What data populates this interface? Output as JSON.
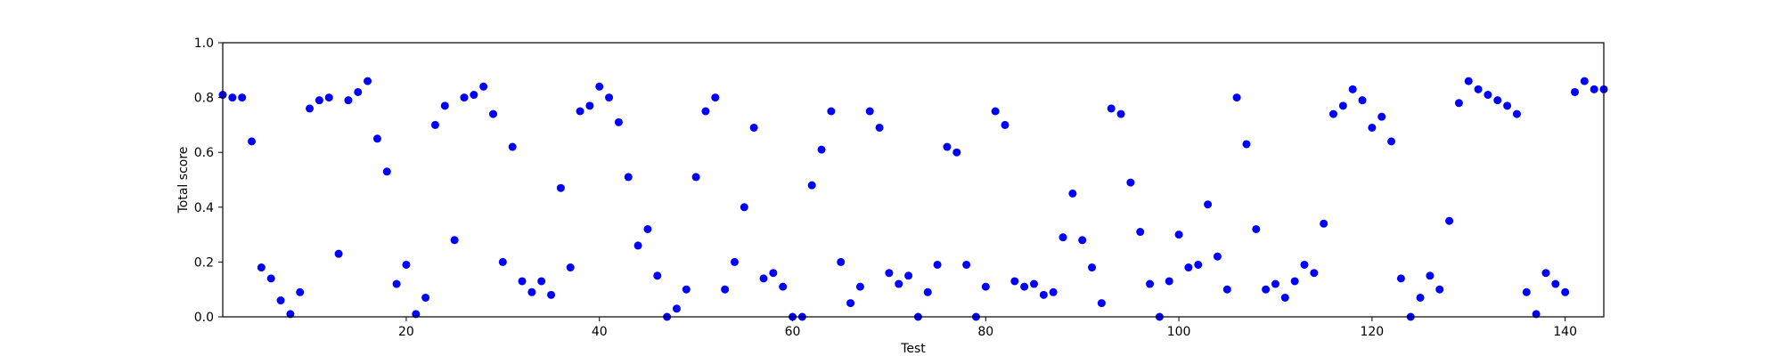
{
  "chart_data": {
    "type": "scatter",
    "title": "",
    "xlabel": "Test",
    "ylabel": "Total score",
    "xlim": [
      1,
      144
    ],
    "ylim": [
      0.0,
      1.0
    ],
    "grid": false,
    "marker_color": "#0000ff",
    "x_ticks": [
      20,
      40,
      60,
      80,
      100,
      120,
      140
    ],
    "x_tick_labels": [
      "20",
      "40",
      "60",
      "80",
      "100",
      "120",
      "140"
    ],
    "y_ticks": [
      0.0,
      0.2,
      0.4,
      0.6,
      0.8,
      1.0
    ],
    "y_tick_labels": [
      "0.0",
      "0.2",
      "0.4",
      "0.6",
      "0.8",
      "1.0"
    ],
    "series": [
      {
        "x": [
          1,
          2,
          3,
          4,
          5,
          6,
          7,
          8,
          9,
          10,
          11,
          12,
          13,
          14,
          15,
          16,
          17,
          18,
          19,
          20,
          21,
          22,
          23,
          24,
          25,
          26,
          27,
          28,
          29,
          30,
          31,
          32,
          33,
          34,
          35,
          36,
          37,
          38,
          39,
          40,
          41,
          42,
          43,
          44,
          45,
          46,
          47,
          48,
          49,
          50,
          51,
          52,
          53,
          54,
          55,
          56,
          57,
          58,
          59,
          60,
          61,
          62,
          63,
          64,
          65,
          66,
          67,
          68,
          69,
          70,
          71,
          72,
          73,
          74,
          75,
          76,
          77,
          78,
          79,
          80,
          81,
          82,
          83,
          84,
          85,
          86,
          87,
          88,
          89,
          90,
          91,
          92,
          93,
          94,
          95,
          96,
          97,
          98,
          99,
          100,
          101,
          102,
          103,
          104,
          105,
          106,
          107,
          108,
          109,
          110,
          111,
          112,
          113,
          114,
          115,
          116,
          117,
          118,
          119,
          120,
          121,
          122,
          123,
          124,
          125,
          126,
          127,
          128,
          129,
          130,
          131,
          132,
          133,
          134,
          135,
          136,
          137,
          138,
          139,
          140,
          141,
          142,
          143,
          144
        ],
        "y": [
          0.81,
          0.8,
          0.8,
          0.64,
          0.18,
          0.14,
          0.06,
          0.01,
          0.09,
          0.76,
          0.79,
          0.8,
          0.23,
          0.79,
          0.82,
          0.86,
          0.65,
          0.53,
          0.12,
          0.19,
          0.01,
          0.07,
          0.7,
          0.77,
          0.28,
          0.8,
          0.81,
          0.84,
          0.74,
          0.2,
          0.62,
          0.13,
          0.09,
          0.13,
          0.08,
          0.47,
          0.18,
          0.75,
          0.77,
          0.84,
          0.8,
          0.71,
          0.51,
          0.26,
          0.32,
          0.15,
          0.0,
          0.03,
          0.1,
          0.51,
          0.75,
          0.8,
          0.1,
          0.2,
          0.4,
          0.69,
          0.14,
          0.16,
          0.11,
          0.0,
          0.0,
          0.48,
          0.61,
          0.75,
          0.2,
          0.05,
          0.11,
          0.75,
          0.69,
          0.16,
          0.12,
          0.15,
          0.0,
          0.09,
          0.19,
          0.62,
          0.6,
          0.19,
          0.0,
          0.11,
          0.75,
          0.7,
          0.13,
          0.11,
          0.12,
          0.08,
          0.09,
          0.29,
          0.45,
          0.28,
          0.18,
          0.05,
          0.76,
          0.74,
          0.49,
          0.31,
          0.12,
          0.0,
          0.13,
          0.3,
          0.18,
          0.19,
          0.41,
          0.22,
          0.1,
          0.8,
          0.63,
          0.32,
          0.1,
          0.12,
          0.07,
          0.13,
          0.19,
          0.16,
          0.34,
          0.74,
          0.77,
          0.83,
          0.79,
          0.69,
          0.73,
          0.64,
          0.14,
          0.0,
          0.07,
          0.15,
          0.1,
          0.35,
          0.78,
          0.86,
          0.83,
          0.81,
          0.79,
          0.77,
          0.74,
          0.09,
          0.01,
          0.16,
          0.12,
          0.09,
          0.82,
          0.86,
          0.83,
          0.83
        ]
      }
    ]
  }
}
